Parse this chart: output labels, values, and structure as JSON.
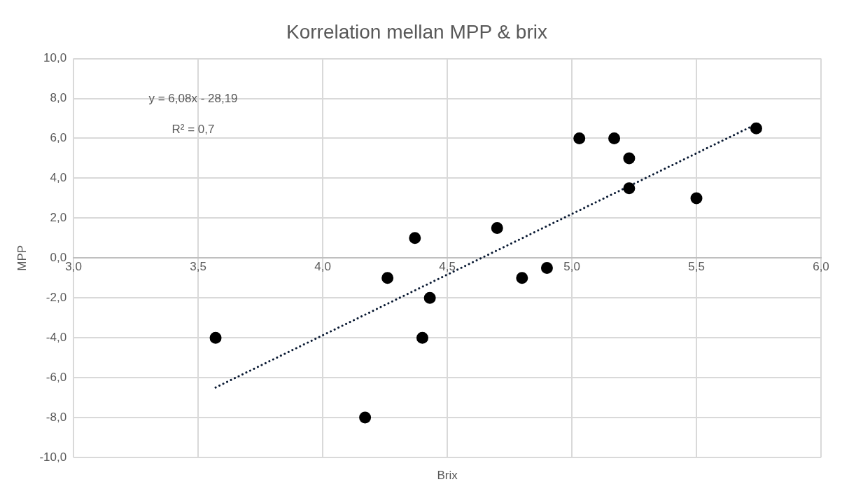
{
  "chart_data": {
    "type": "scatter",
    "title": "Korrelation mellan MPP & brix",
    "xlabel": "Brix",
    "ylabel": "MPP",
    "xlim": [
      3,
      6
    ],
    "xticks": [
      {
        "value": 3,
        "label": "3,0"
      },
      {
        "value": 3.5,
        "label": "3,5"
      },
      {
        "value": 4,
        "label": "4,0"
      },
      {
        "value": 4.5,
        "label": "4,5"
      },
      {
        "value": 5,
        "label": "5,0"
      },
      {
        "value": 5.5,
        "label": "5,5"
      },
      {
        "value": 6,
        "label": "6,0"
      }
    ],
    "ylim": [
      -10,
      10
    ],
    "yticks": [
      {
        "value": -10,
        "label": "-10,0"
      },
      {
        "value": -8,
        "label": "-8,0"
      },
      {
        "value": -6,
        "label": "-6,0"
      },
      {
        "value": -4,
        "label": "-4,0"
      },
      {
        "value": -2,
        "label": "-2,0"
      },
      {
        "value": 0,
        "label": "0,0"
      },
      {
        "value": 2,
        "label": "2,0"
      },
      {
        "value": 4,
        "label": "4,0"
      },
      {
        "value": 6,
        "label": "6,0"
      },
      {
        "value": 8,
        "label": "8,0"
      },
      {
        "value": 10,
        "label": "10,0"
      }
    ],
    "grid": true,
    "legend": false,
    "series": [
      {
        "color": "#000000",
        "marker": "circle",
        "x": [
          3.57,
          4.17,
          4.26,
          4.37,
          4.4,
          4.43,
          4.7,
          4.8,
          4.9,
          5.03,
          5.17,
          5.23,
          5.23,
          5.5,
          5.74
        ],
        "values": [
          -4,
          -8,
          -1,
          1,
          -4,
          -2,
          1.5,
          -1,
          -0.5,
          6,
          6,
          5,
          3.5,
          3,
          6.5
        ]
      },
      {
        "type": "line",
        "color": "#0a1a33",
        "marker": "none",
        "line_style": "dotted",
        "x": [
          3.57,
          5.74
        ],
        "values": [
          -6.49,
          6.71
        ]
      }
    ],
    "annotations": [
      "y = 6,08x - 28,19",
      "R² = 0,7"
    ]
  }
}
